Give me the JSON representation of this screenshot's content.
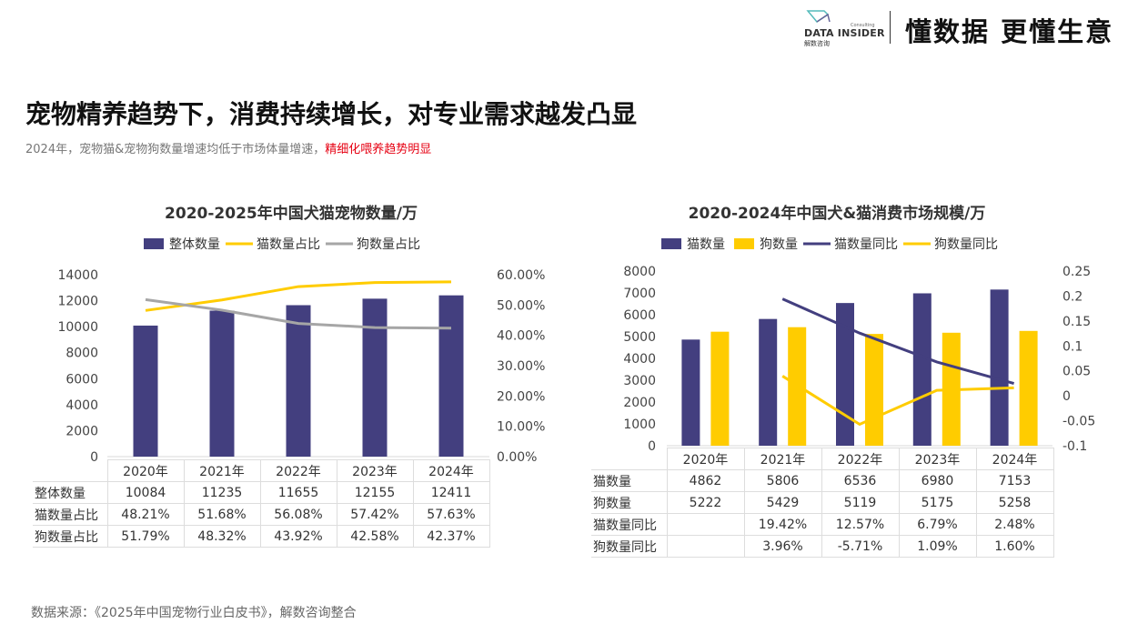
{
  "header": {
    "logo_text": "DATA INSIDER",
    "logo_sub": "解数咨询",
    "logo_consulting": "Consulting",
    "slogan": "懂数据 更懂生意"
  },
  "title": "宠物精养趋势下，消费持续增长，对专业需求越发凸显",
  "subtitle": {
    "plain": "2024年，宠物猫&宠物狗数量增速均低于市场体量增速，",
    "highlight": "精细化喂养趋势明显"
  },
  "source": "数据来源：《2025年中国宠物行业白皮书》，解数咨询整合",
  "colors": {
    "navy": "#433f7f",
    "yellow": "#ffcc00",
    "gray": "#a6a6a6",
    "highlight": "#e60012"
  },
  "chart_data": [
    {
      "type": "bar+line",
      "title": "2020-2025年中国犬猫宠物数量/万",
      "categories": [
        "2020年",
        "2021年",
        "2022年",
        "2023年",
        "2024年"
      ],
      "legend_position": "top",
      "yticks": [
        "0",
        "2000",
        "4000",
        "6000",
        "8000",
        "10000",
        "12000",
        "14000"
      ],
      "y2ticks": [
        "0.00%",
        "10.00%",
        "20.00%",
        "30.00%",
        "40.00%",
        "50.00%",
        "60.00%"
      ],
      "ylim": [
        0,
        14000
      ],
      "y2lim": [
        0,
        60
      ],
      "series": [
        {
          "name": "整体数量",
          "kind": "bar",
          "axis": "left",
          "color": "#433f7f",
          "values": [
            10084,
            11235,
            11655,
            12155,
            12411
          ],
          "labels": [
            "10084",
            "11235",
            "11655",
            "12155",
            "12411"
          ]
        },
        {
          "name": "猫数量占比",
          "kind": "line",
          "axis": "right",
          "color": "#ffcc00",
          "values": [
            48.21,
            51.68,
            56.08,
            57.42,
            57.63
          ],
          "labels": [
            "48.21%",
            "51.68%",
            "56.08%",
            "57.42%",
            "57.63%"
          ]
        },
        {
          "name": "狗数量占比",
          "kind": "line",
          "axis": "right",
          "color": "#a6a6a6",
          "values": [
            51.79,
            48.32,
            43.92,
            42.58,
            42.37
          ],
          "labels": [
            "51.79%",
            "48.32%",
            "43.92%",
            "42.58%",
            "42.37%"
          ]
        }
      ]
    },
    {
      "type": "bar+line",
      "title": "2020-2024年中国犬&猫消费市场规模/万",
      "categories": [
        "2020年",
        "2021年",
        "2022年",
        "2023年",
        "2024年"
      ],
      "legend_position": "top",
      "yticks": [
        "0",
        "1000",
        "2000",
        "3000",
        "4000",
        "5000",
        "6000",
        "7000",
        "8000"
      ],
      "y2ticks": [
        "-0.1",
        "-0.05",
        "0",
        "0.05",
        "0.1",
        "0.15",
        "0.2",
        "0.25"
      ],
      "ylim": [
        0,
        8000
      ],
      "y2lim": [
        -0.1,
        0.25
      ],
      "series": [
        {
          "name": "猫数量",
          "kind": "bar",
          "axis": "left",
          "color": "#433f7f",
          "values": [
            4862,
            5806,
            6536,
            6980,
            7153
          ],
          "labels": [
            "4862",
            "5806",
            "6536",
            "6980",
            "7153"
          ]
        },
        {
          "name": "狗数量",
          "kind": "bar",
          "axis": "left",
          "color": "#ffcc00",
          "values": [
            5222,
            5429,
            5119,
            5175,
            5258
          ],
          "labels": [
            "5222",
            "5429",
            "5119",
            "5175",
            "5258"
          ]
        },
        {
          "name": "猫数量同比",
          "kind": "line",
          "axis": "right",
          "color": "#433f7f",
          "values": [
            null,
            0.1942,
            0.1257,
            0.0679,
            0.0248
          ],
          "labels": [
            "",
            "19.42%",
            "12.57%",
            "6.79%",
            "2.48%"
          ]
        },
        {
          "name": "狗数量同比",
          "kind": "line",
          "axis": "right",
          "color": "#ffcc00",
          "values": [
            null,
            0.0396,
            -0.0571,
            0.0109,
            0.016
          ],
          "labels": [
            "",
            "3.96%",
            "-5.71%",
            "1.09%",
            "1.60%"
          ]
        }
      ]
    }
  ]
}
